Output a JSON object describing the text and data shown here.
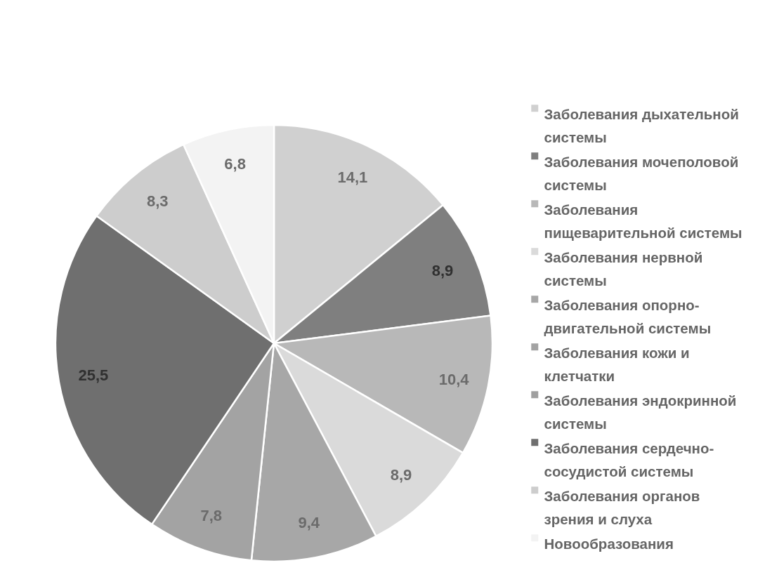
{
  "chart_data": {
    "type": "pie",
    "categories": [
      "Заболевания дыхательной системы",
      "Заболевания мочеполовой системы",
      "Заболевания пищеварительной системы",
      "Заболевания нервной системы",
      "Заболевания опорно-двигательной системы",
      "Заболевания кожи и клетчатки",
      "Заболевания эндокринной системы",
      "Заболевания сердечно-сосудистой системы",
      "Заболевания органов зрения и слуха",
      "Новообразования"
    ],
    "values": [
      14.1,
      8.9,
      10.4,
      8.9,
      9.4,
      7.8,
      null,
      25.5,
      8.3,
      6.8
    ],
    "value_labels": [
      "14,1",
      "8,9",
      "10,4",
      "8,9",
      "9,4",
      "7,8",
      null,
      "25,5",
      "8,3",
      "6,8"
    ],
    "colors": [
      "#d0d0d0",
      "#7f7f7f",
      "#b8b8b8",
      "#dadada",
      "#a7a7a7",
      "#a3a3a3",
      "#9f9f9f",
      "#6f6f6f",
      "#cdcdcd",
      "#f3f3f3"
    ],
    "legend": "right"
  }
}
